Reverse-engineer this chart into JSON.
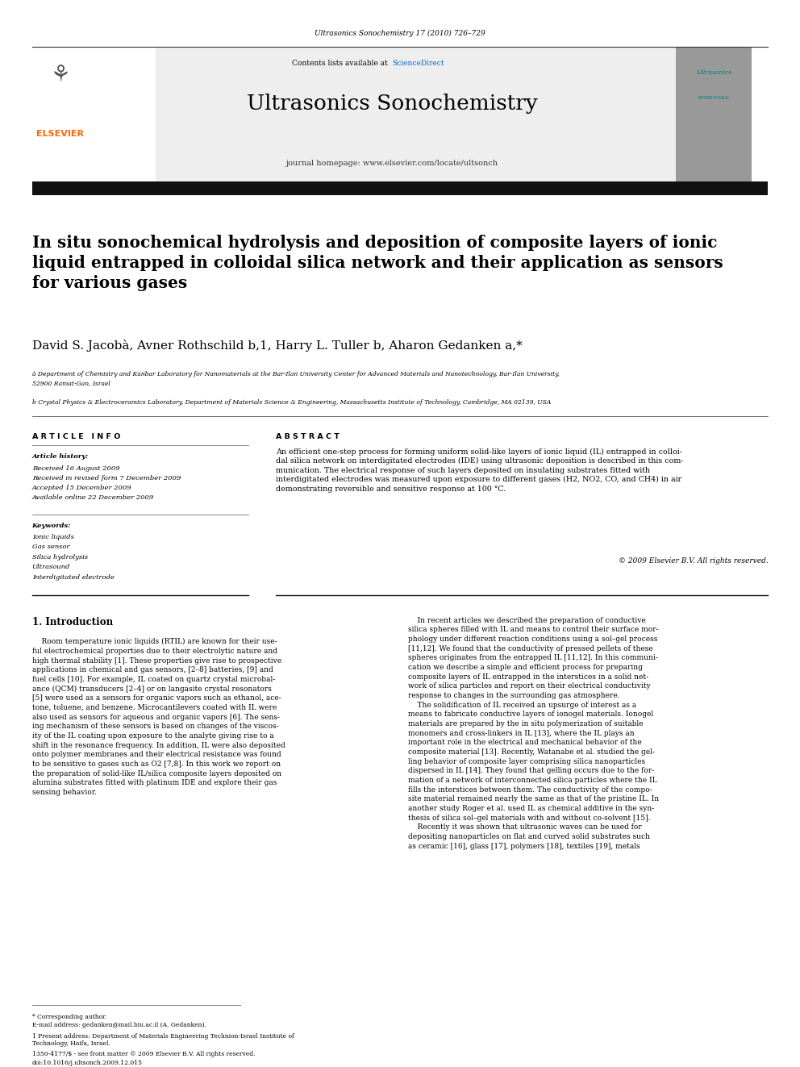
{
  "page_width": 9.92,
  "page_height": 13.23,
  "bg_color": "#ffffff",
  "header_journal_ref": "Ultrasonics Sonochemistry 17 (2010) 726–729",
  "header_bg": "#e8e8e8",
  "journal_name": "Ultrasonics Sonochemistry",
  "journal_homepage": "journal homepage: www.elsevier.com/locate/ultsonch",
  "contents_text": "Contents lists available at ",
  "sciencedirect_text": "ScienceDirect",
  "sciencedirect_color": "#0066cc",
  "elsevier_color": "#ff6600",
  "elsevier_text": "ELSEVIER",
  "black_bar_color": "#111111",
  "title": "In situ sonochemical hydrolysis and deposition of composite layers of ionic\nliquid entrapped in colloidal silica network and their application as sensors\nfor various gases",
  "authors": "David S. Jacobà, Avner Rothschild b,1, Harry L. Tuller b, Aharon Gedanken a,*",
  "affiliation_a": "à Department of Chemistry and Kanbar Laboratory for Nanomaterials at the Bar-Ilan University Center for Advanced Materials and Nanotechnology, Bar-Ilan University,\n52900 Ramat-Gan, Israel",
  "affiliation_b": "b Crystal Physics & Electroceramics Laboratory, Department of Materials Science & Engineering, Massachusetts Institute of Technology, Cambridge, MA 02139, USA",
  "article_info_title": "A R T I C L E   I N F O",
  "article_history_label": "Article history:",
  "received1": "Received 16 August 2009",
  "received2": "Received in revised form 7 December 2009",
  "accepted": "Accepted 15 December 2009",
  "available": "Available online 22 December 2009",
  "keywords_label": "Keywords:",
  "keywords": [
    "Ionic liquids",
    "Gas sensor",
    "Silica hydrolysis",
    "Ultrasound",
    "Interdigitated electrode"
  ],
  "abstract_title": "A B S T R A C T",
  "abstract_text": "An efficient one-step process for forming uniform solid-like layers of ionic liquid (IL) entrapped in colloi-\ndal silica network on interdigitated electrodes (IDE) using ultrasonic deposition is described in this com-\nmunication. The electrical response of such layers deposited on insulating substrates fitted with\ninterdigitated electrodes was measured upon exposure to different gases (H2, NO2, CO, and CH4) in air\ndemonstrating reversible and sensitive response at 100 °C.",
  "copyright": "© 2009 Elsevier B.V. All rights reserved.",
  "intro_title": "1. Introduction",
  "intro_left": "    Room temperature ionic liquids (RTIL) are known for their use-\nful electrochemical properties due to their electrolytic nature and\nhigh thermal stability [1]. These properties give rise to prospective\napplications in chemical and gas sensors, [2–8] batteries, [9] and\nfuel cells [10]. For example, IL coated on quartz crystal microbal-\nance (QCM) transducers [2–4] or on langasite crystal resonators\n[5] were used as a sensors for organic vapors such as ethanol, ace-\ntone, toluene, and benzene. Microcantilevers coated with IL were\nalso used as sensors for aqueous and organic vapors [6]. The sens-\ning mechanism of these sensors is based on changes of the viscos-\nity of the IL coating upon exposure to the analyte giving rise to a\nshift in the resonance frequency. In addition, IL were also deposited\nonto polymer membranes and their electrical resistance was found\nto be sensitive to gases such as O2 [7,8]. In this work we report on\nthe preparation of solid-like IL/silica composite layers deposited on\nalumina substrates fitted with platinum IDE and explore their gas\nsensing behavior.",
  "intro_right": "    In recent articles we described the preparation of conductive\nsilica spheres filled with IL and means to control their surface mor-\nphology under different reaction conditions using a sol–gel process\n[11,12]. We found that the conductivity of pressed pellets of these\nspheres originates from the entrapped IL [11,12]. In this communi-\ncation we describe a simple and efficient process for preparing\ncomposite layers of IL entrapped in the interstices in a solid net-\nwork of silica particles and report on their electrical conductivity\nresponse to changes in the surrounding gas atmosphere.\n    The solidification of IL received an upsurge of interest as a\nmeans to fabricate conductive layers of ionogel materials. Ionogel\nmaterials are prepared by the in situ polymerization of suitable\nmonomers and cross-linkers in IL [13], where the IL plays an\nimportant role in the electrical and mechanical behavior of the\ncomposite material [13]. Recently, Watanabe et al. studied the gel-\nling behavior of composite layer comprising silica nanoparticles\ndispersed in IL [14]. They found that gelling occurs due to the for-\nmation of a network of interconnected silica particles where the IL\nfills the interstices between them. The conductivity of the compo-\nsite material remained nearly the same as that of the pristine IL. In\nanother study Roger et al. used IL as chemical additive in the syn-\nthesis of silica sol–gel materials with and without co-solvent [15].\n    Recently it was shown that ultrasonic waves can be used for\ndepositing nanoparticles on flat and curved solid substrates such\nas ceramic [16], glass [17], polymers [18], textiles [19], metals",
  "footnote_star": "* Corresponding author.",
  "footnote_email": "E-mail address: gedanken@mail.biu.ac.il (A. Gedanken).",
  "footnote_1": "1 Present address: Department of Materials Engineering Technion-Israel Institute of\nTechnology, Haifa, Israel.",
  "issn_line": "1350-4177/$ - see front matter © 2009 Elsevier B.V. All rights reserved.",
  "doi_line": "doi:10.1016/j.ultsonch.2009.12.015"
}
